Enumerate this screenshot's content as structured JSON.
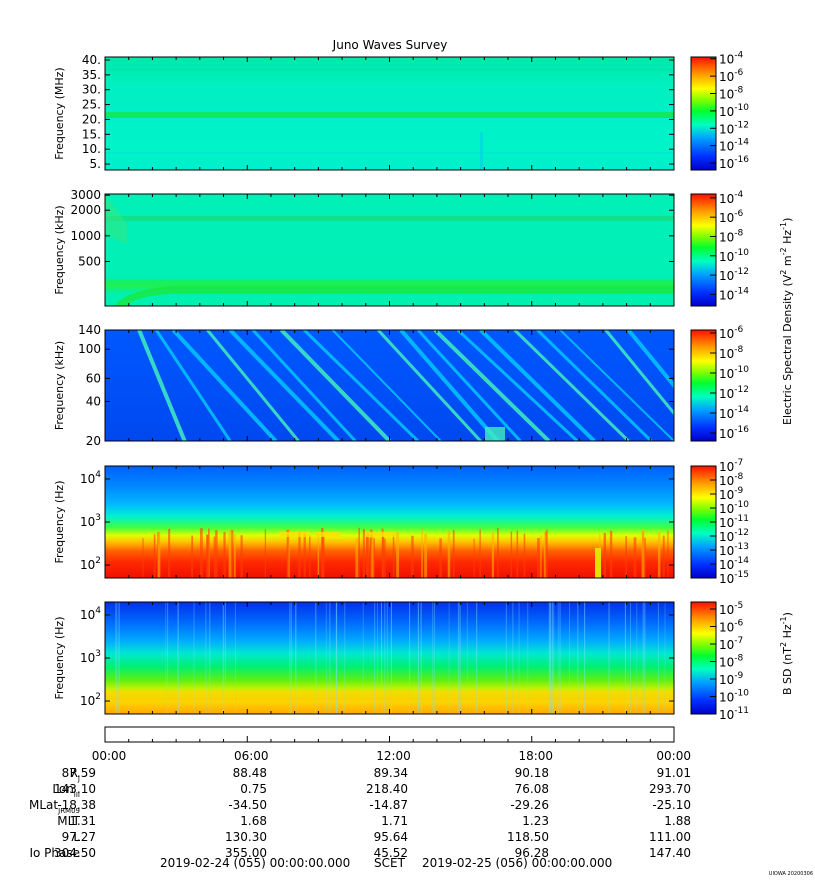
{
  "figure": {
    "title": "Juno Waves Survey",
    "stamp": "UIOWA 20200306"
  },
  "chart_data": [
    {
      "type": "heatmap",
      "panel": 1,
      "ylabel": "Frequency (MHz)",
      "yticks": [
        "40.",
        "35.",
        "30.",
        "25.",
        "20.",
        "15.",
        "10.",
        "5."
      ],
      "ytick_values": [
        40,
        35,
        30,
        25,
        20,
        15,
        10,
        5
      ],
      "ylim": [
        3,
        41
      ],
      "yscale": "linear",
      "features": [
        {
          "kind": "band",
          "center": 21.5,
          "width": 1.5
        }
      ],
      "colorbar": {
        "ticks": [
          {
            "base": "10",
            "exp": "-4"
          },
          {
            "base": "10",
            "exp": "-6"
          },
          {
            "base": "10",
            "exp": "-8"
          },
          {
            "base": "10",
            "exp": "-10"
          },
          {
            "base": "10",
            "exp": "-12"
          },
          {
            "base": "10",
            "exp": "-14"
          },
          {
            "base": "10",
            "exp": "-16"
          }
        ],
        "log_min": -16.8,
        "log_max": -3.8
      }
    },
    {
      "type": "heatmap",
      "panel": 2,
      "ylabel": "Frequency (kHz)",
      "yticks": [
        "3000",
        "2000",
        "1000",
        "500"
      ],
      "ytick_values": [
        3000,
        2000,
        1000,
        500
      ],
      "ylim": [
        150,
        3100
      ],
      "yscale": "log",
      "features": [
        {
          "kind": "band",
          "center": 1600
        },
        {
          "kind": "band",
          "center": 260
        }
      ],
      "colorbar": {
        "ticks": [
          {
            "base": "10",
            "exp": "-4"
          },
          {
            "base": "10",
            "exp": "-6"
          },
          {
            "base": "10",
            "exp": "-8"
          },
          {
            "base": "10",
            "exp": "-10"
          },
          {
            "base": "10",
            "exp": "-12"
          },
          {
            "base": "10",
            "exp": "-14"
          }
        ],
        "log_min": -15.2,
        "log_max": -3.6
      }
    },
    {
      "type": "heatmap",
      "panel": 3,
      "ylabel": "Frequency (kHz)",
      "yticks": [
        "140",
        "100",
        "60",
        "40",
        "20"
      ],
      "ytick_values": [
        140,
        100,
        60,
        40,
        20
      ],
      "ylim": [
        20,
        140
      ],
      "yscale": "log",
      "colorbar": {
        "ticks": [
          {
            "base": "10",
            "exp": "-6"
          },
          {
            "base": "10",
            "exp": "-8"
          },
          {
            "base": "10",
            "exp": "-10"
          },
          {
            "base": "10",
            "exp": "-12"
          },
          {
            "base": "10",
            "exp": "-14"
          },
          {
            "base": "10",
            "exp": "-16"
          }
        ],
        "log_min": -16.8,
        "log_max": -5.7
      }
    },
    {
      "type": "heatmap",
      "panel": 4,
      "ylabel": "Frequency (Hz)",
      "yticks": [
        {
          "base": "10",
          "exp": "4"
        },
        {
          "base": "10",
          "exp": "3"
        },
        {
          "base": "10",
          "exp": "2"
        }
      ],
      "ytick_values": [
        10000,
        1000,
        100
      ],
      "ylim": [
        50,
        20000
      ],
      "yscale": "log",
      "colorbar": {
        "ticks": [
          {
            "base": "10",
            "exp": "-7"
          },
          {
            "base": "10",
            "exp": "-8"
          },
          {
            "base": "10",
            "exp": "-9"
          },
          {
            "base": "10",
            "exp": "-10"
          },
          {
            "base": "10",
            "exp": "-11"
          },
          {
            "base": "10",
            "exp": "-12"
          },
          {
            "base": "10",
            "exp": "-13"
          },
          {
            "base": "10",
            "exp": "-14"
          },
          {
            "base": "10",
            "exp": "-15"
          }
        ],
        "log_min": -15,
        "log_max": -7
      }
    },
    {
      "type": "heatmap",
      "panel": 5,
      "ylabel": "Frequency (Hz)",
      "yticks": [
        {
          "base": "10",
          "exp": "4"
        },
        {
          "base": "10",
          "exp": "3"
        },
        {
          "base": "10",
          "exp": "2"
        }
      ],
      "ytick_values": [
        10000,
        1000,
        100
      ],
      "ylim": [
        50,
        20000
      ],
      "yscale": "log",
      "colorbar": {
        "ticks": [
          {
            "base": "10",
            "exp": "-5"
          },
          {
            "base": "10",
            "exp": "-6"
          },
          {
            "base": "10",
            "exp": "-7"
          },
          {
            "base": "10",
            "exp": "-8"
          },
          {
            "base": "10",
            "exp": "-9"
          },
          {
            "base": "10",
            "exp": "-10"
          },
          {
            "base": "10",
            "exp": "-11"
          }
        ],
        "log_min": -11,
        "log_max": -4.6
      }
    }
  ],
  "colorbar_labels": {
    "electric": {
      "prefix": "Electric Spectral Density (V",
      "mid": " m",
      "mid2": " Hz",
      "close": ")",
      "sup1": "2",
      "sup2": "-2",
      "sup3": "-1"
    },
    "magnetic": {
      "prefix": "B SD (nT",
      "mid": " Hz",
      "close": ")",
      "sup1": "2",
      "sup2": "-1"
    }
  },
  "x_axis": {
    "ticks": [
      "00:00",
      "06:00",
      "12:00",
      "18:00",
      "00:00"
    ],
    "tick_hours": [
      0,
      6,
      12,
      18,
      24
    ],
    "range_hours": [
      0,
      24
    ]
  },
  "ephemeris": [
    {
      "label": "R",
      "sub": "J",
      "values": [
        "87.59",
        "88.48",
        "89.34",
        "90.18",
        "91.01"
      ]
    },
    {
      "label": "Lon",
      "sub": "III",
      "values": [
        "143.10",
        "0.75",
        "218.40",
        "76.08",
        "293.70"
      ]
    },
    {
      "label": "MLat",
      "sub": "JRM09",
      "values": [
        "-18.38",
        "-34.50",
        "-14.87",
        "-29.26",
        "-25.10"
      ]
    },
    {
      "label": "MLT",
      "sub": "",
      "values": [
        "1.31",
        "1.68",
        "1.71",
        "1.23",
        "1.88"
      ]
    },
    {
      "label": "L",
      "sub": "",
      "values": [
        "97.27",
        "130.30",
        "95.64",
        "118.50",
        "111.00"
      ]
    },
    {
      "label": "Io Phase",
      "sub": "",
      "values": [
        "304.50",
        "355.00",
        "45.52",
        "96.28",
        "147.40"
      ]
    }
  ],
  "footer": {
    "start": "2019-02-24 (055) 00:00:00.000",
    "scet": "SCET",
    "end": "2019-02-25 (056) 00:00:00.000"
  }
}
